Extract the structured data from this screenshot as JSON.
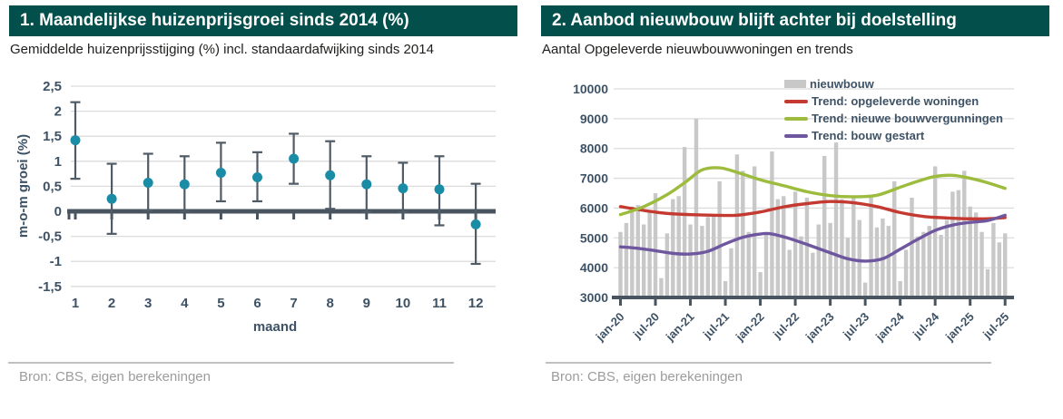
{
  "colors": {
    "header_bg": "#034f4c",
    "header_text": "#ffffff",
    "axis_text": "#3e5266",
    "axis_line": "#485561",
    "grid": "#dcdcdc",
    "point": "#1b8ca6",
    "error_bar": "#4f5b66",
    "bar": "#c8c8c8",
    "trend_red": "#c43a31",
    "trend_green": "#9dbc3e",
    "trend_purple": "#6f579f",
    "source_text": "#9c9c9c",
    "subtitle_text": "#1e1e1c"
  },
  "panels": [
    {
      "title": "1. Maandelijkse huizenprijsgroei sinds 2014 (%)",
      "subtitle": "Gemiddelde huizenprijsstijging (%) incl. standaardafwijking sinds 2014",
      "source": "Bron: CBS, eigen berekeningen"
    },
    {
      "title": "2.  Aanbod nieuwbouw blijft achter bij doelstelling",
      "subtitle": "Aantal Opgeleverde nieuwbouwwoningen en trends",
      "source": "Bron: CBS, eigen berekeningen"
    }
  ],
  "chart_data": [
    {
      "type": "scatter",
      "title": "Maandelijkse huizenprijsgroei sinds 2014 (%)",
      "xlabel": "maand",
      "ylabel": "m-o-m groei (%)",
      "x": [
        1,
        2,
        3,
        4,
        5,
        6,
        7,
        8,
        9,
        10,
        11,
        12
      ],
      "mean": [
        1.42,
        0.25,
        0.57,
        0.54,
        0.77,
        0.68,
        1.05,
        0.72,
        0.54,
        0.46,
        0.44,
        -0.26
      ],
      "lower": [
        0.65,
        -0.45,
        0.02,
        0.0,
        0.2,
        0.2,
        0.55,
        0.05,
        -0.02,
        -0.02,
        -0.28,
        -1.05
      ],
      "upper": [
        2.18,
        0.95,
        1.15,
        1.1,
        1.37,
        1.18,
        1.55,
        1.4,
        1.1,
        0.97,
        1.1,
        0.55
      ],
      "ylim": [
        -1.5,
        2.5
      ],
      "ytick_step": 0.5,
      "grid": true,
      "decimal_comma": true
    },
    {
      "type": "bar",
      "title": "Aanbod nieuwbouw blijft achter bij doelstelling",
      "ylim": [
        3000,
        10000
      ],
      "ytick_step": 1000,
      "grid": true,
      "xticks": [
        "jan-20",
        "jul-20",
        "jan-21",
        "jul-21",
        "jan-22",
        "jul-22",
        "jan-23",
        "jul-23",
        "jan-24",
        "jul-24",
        "jan-25",
        "jul-25"
      ],
      "xtick_month_indices": [
        0,
        6,
        12,
        18,
        24,
        30,
        36,
        42,
        48,
        54,
        60,
        66
      ],
      "bar_series_name": "nieuwbouw",
      "bars": [
        5200,
        5500,
        6050,
        6100,
        5450,
        5900,
        6500,
        3650,
        5150,
        6300,
        6400,
        8050,
        5450,
        9000,
        5400,
        5700,
        5750,
        6900,
        3550,
        4650,
        7800,
        7250,
        5200,
        7400,
        3850,
        5100,
        7900,
        6300,
        6400,
        4600,
        6550,
        5050,
        6350,
        4500,
        5450,
        7750,
        5500,
        8200,
        6300,
        5000,
        6350,
        5600,
        3500,
        6350,
        5350,
        5650,
        5400,
        6900,
        3550,
        4600,
        6350,
        5050,
        5200,
        5400,
        7400,
        5100,
        5600,
        6550,
        6600,
        7250,
        6050,
        5850,
        5200,
        3950,
        5500,
        4850,
        5150
      ],
      "series": [
        {
          "name": "Trend: opgeleverde woningen",
          "color_key": "trend_red",
          "points": [
            [
              0,
              6050
            ],
            [
              4,
              5920
            ],
            [
              8,
              5820
            ],
            [
              12,
              5780
            ],
            [
              16,
              5760
            ],
            [
              20,
              5760
            ],
            [
              24,
              5870
            ],
            [
              28,
              6040
            ],
            [
              32,
              6150
            ],
            [
              36,
              6220
            ],
            [
              40,
              6180
            ],
            [
              44,
              6050
            ],
            [
              48,
              5850
            ],
            [
              52,
              5720
            ],
            [
              56,
              5670
            ],
            [
              60,
              5640
            ],
            [
              63,
              5640
            ],
            [
              66,
              5680
            ]
          ]
        },
        {
          "name": "Trend: nieuwe bouwvergunningen",
          "color_key": "trend_green",
          "points": [
            [
              0,
              5780
            ],
            [
              4,
              6050
            ],
            [
              8,
              6450
            ],
            [
              11,
              6850
            ],
            [
              14,
              7280
            ],
            [
              17,
              7350
            ],
            [
              20,
              7200
            ],
            [
              24,
              6950
            ],
            [
              28,
              6750
            ],
            [
              32,
              6550
            ],
            [
              36,
              6420
            ],
            [
              40,
              6380
            ],
            [
              44,
              6430
            ],
            [
              48,
              6700
            ],
            [
              51,
              6900
            ],
            [
              54,
              7060
            ],
            [
              57,
              7100
            ],
            [
              60,
              7000
            ],
            [
              63,
              6850
            ],
            [
              66,
              6660
            ]
          ]
        },
        {
          "name": "Trend: bouw gestart",
          "color_key": "trend_purple",
          "points": [
            [
              0,
              4700
            ],
            [
              3,
              4650
            ],
            [
              6,
              4570
            ],
            [
              9,
              4480
            ],
            [
              12,
              4460
            ],
            [
              15,
              4550
            ],
            [
              18,
              4800
            ],
            [
              21,
              5020
            ],
            [
              24,
              5130
            ],
            [
              26,
              5130
            ],
            [
              29,
              4980
            ],
            [
              32,
              4780
            ],
            [
              36,
              4500
            ],
            [
              39,
              4300
            ],
            [
              42,
              4220
            ],
            [
              45,
              4300
            ],
            [
              48,
              4620
            ],
            [
              51,
              4950
            ],
            [
              54,
              5250
            ],
            [
              57,
              5430
            ],
            [
              60,
              5520
            ],
            [
              63,
              5580
            ],
            [
              66,
              5760
            ]
          ]
        }
      ],
      "legend": [
        "nieuwbouw",
        "Trend: opgeleverde woningen",
        "Trend: nieuwe bouwvergunningen",
        "Trend: bouw gestart"
      ],
      "legend_position": "top-right"
    }
  ]
}
